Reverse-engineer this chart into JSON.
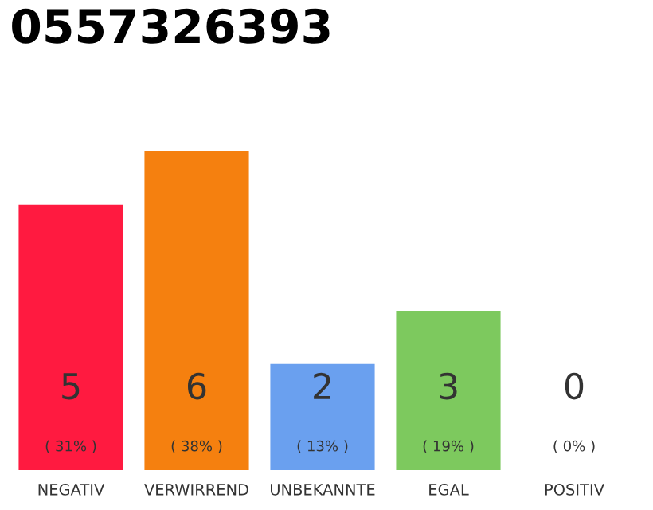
{
  "chart_data": {
    "type": "bar",
    "title": "0557326393",
    "categories": [
      "NEGATIV",
      "VERWIRREND",
      "UNBEKANNTE",
      "EGAL",
      "POSITIV"
    ],
    "values": [
      5,
      6,
      2,
      3,
      0
    ],
    "colors": [
      "#ff1a40",
      "#f5800f",
      "#6aa0ef",
      "#7dc95e",
      "#e0e0e0"
    ],
    "value_labels": [
      "5\n( 31% )",
      "6\n( 38% )",
      "2\n( 13% )",
      "3\n( 19% )",
      "0\n( 0% )"
    ],
    "grid": false,
    "legend": false
  }
}
